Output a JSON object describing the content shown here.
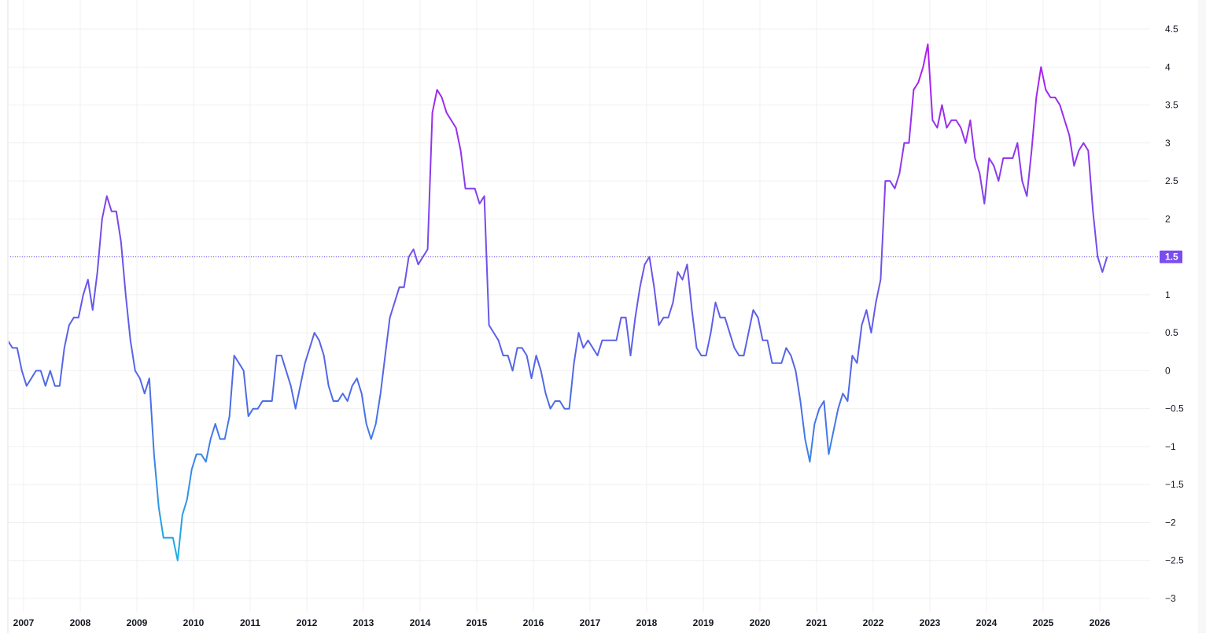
{
  "chart_data": {
    "type": "line",
    "title": "",
    "xlabel": "",
    "ylabel": "",
    "ylim": [
      -3,
      4.5
    ],
    "grid": true,
    "legend": null,
    "y_ticks": [
      "4.5",
      "4",
      "3.5",
      "3",
      "2.5",
      "2",
      "1.5",
      "1",
      "0.5",
      "0",
      "−0.5",
      "−1",
      "−1.5",
      "−2",
      "−2.5",
      "−3"
    ],
    "y_tick_values": [
      4.5,
      4,
      3.5,
      3,
      2.5,
      2,
      1.5,
      1,
      0.5,
      0,
      -0.5,
      -1,
      -1.5,
      -2,
      -2.5,
      -3
    ],
    "x_ticks": [
      "2007",
      "2008",
      "2009",
      "2010",
      "2011",
      "2012",
      "2013",
      "2014",
      "2015",
      "2016",
      "2017",
      "2018",
      "2019",
      "2020",
      "2021",
      "2022",
      "2023",
      "2024",
      "2025",
      "2026"
    ],
    "x_start_year_fraction": 2006.72,
    "x_step_years": 0.0833,
    "last_value": 1.5,
    "last_value_label": "1.5",
    "series": [
      {
        "name": "value",
        "gradient_colors": {
          "low": "#1fa8e6",
          "mid": "#5b5ce6",
          "high": "#b21bf0"
        },
        "values": [
          0.4,
          0.3,
          0.3,
          0.0,
          -0.2,
          -0.1,
          0.0,
          0.0,
          -0.2,
          0.0,
          -0.2,
          -0.2,
          0.3,
          0.6,
          0.7,
          0.7,
          1.0,
          1.2,
          0.8,
          1.3,
          2.0,
          2.3,
          2.1,
          2.1,
          1.7,
          1.0,
          0.4,
          0.0,
          -0.1,
          -0.3,
          -0.1,
          -1.1,
          -1.8,
          -2.2,
          -2.2,
          -2.2,
          -2.5,
          -1.9,
          -1.7,
          -1.3,
          -1.1,
          -1.1,
          -1.2,
          -0.9,
          -0.7,
          -0.9,
          -0.9,
          -0.6,
          0.2,
          0.1,
          0.0,
          -0.6,
          -0.5,
          -0.5,
          -0.4,
          -0.4,
          -0.4,
          0.2,
          0.2,
          0.0,
          -0.2,
          -0.5,
          -0.2,
          0.1,
          0.3,
          0.5,
          0.4,
          0.2,
          -0.2,
          -0.4,
          -0.4,
          -0.3,
          -0.4,
          -0.2,
          -0.1,
          -0.3,
          -0.7,
          -0.9,
          -0.7,
          -0.3,
          0.2,
          0.7,
          0.9,
          1.1,
          1.1,
          1.5,
          1.6,
          1.4,
          1.5,
          1.6,
          3.4,
          3.7,
          3.6,
          3.4,
          3.3,
          3.2,
          2.9,
          2.4,
          2.4,
          2.4,
          2.2,
          2.3,
          0.6,
          0.5,
          0.4,
          0.2,
          0.2,
          0.0,
          0.3,
          0.3,
          0.2,
          -0.1,
          0.2,
          0.0,
          -0.3,
          -0.5,
          -0.4,
          -0.4,
          -0.5,
          -0.5,
          0.1,
          0.5,
          0.3,
          0.4,
          0.3,
          0.2,
          0.4,
          0.4,
          0.4,
          0.4,
          0.7,
          0.7,
          0.2,
          0.7,
          1.1,
          1.4,
          1.5,
          1.1,
          0.6,
          0.7,
          0.7,
          0.9,
          1.3,
          1.2,
          1.4,
          0.8,
          0.3,
          0.2,
          0.2,
          0.5,
          0.9,
          0.7,
          0.7,
          0.5,
          0.3,
          0.2,
          0.2,
          0.5,
          0.8,
          0.7,
          0.4,
          0.4,
          0.1,
          0.1,
          0.1,
          0.3,
          0.2,
          0.0,
          -0.4,
          -0.9,
          -1.2,
          -0.7,
          -0.5,
          -0.4,
          -1.1,
          -0.8,
          -0.5,
          -0.3,
          -0.4,
          0.2,
          0.1,
          0.6,
          0.8,
          0.5,
          0.9,
          1.2,
          2.5,
          2.5,
          2.4,
          2.6,
          3.0,
          3.0,
          3.7,
          3.8,
          4.0,
          4.3,
          3.3,
          3.2,
          3.5,
          3.2,
          3.3,
          3.3,
          3.2,
          3.0,
          3.3,
          2.8,
          2.6,
          2.2,
          2.8,
          2.7,
          2.5,
          2.8,
          2.8,
          2.8,
          3.0,
          2.5,
          2.3,
          2.9,
          3.6,
          4.0,
          3.7,
          3.6,
          3.6,
          3.5,
          3.3,
          3.1,
          2.7,
          2.9,
          3.0,
          2.9,
          2.1,
          1.5,
          1.3,
          1.5
        ]
      }
    ],
    "colors": {
      "grid": "#f0f0f0",
      "axis_text": "#131722",
      "price_line": "#6a4cf0",
      "last_label_bg": "#7b4cf0"
    }
  }
}
